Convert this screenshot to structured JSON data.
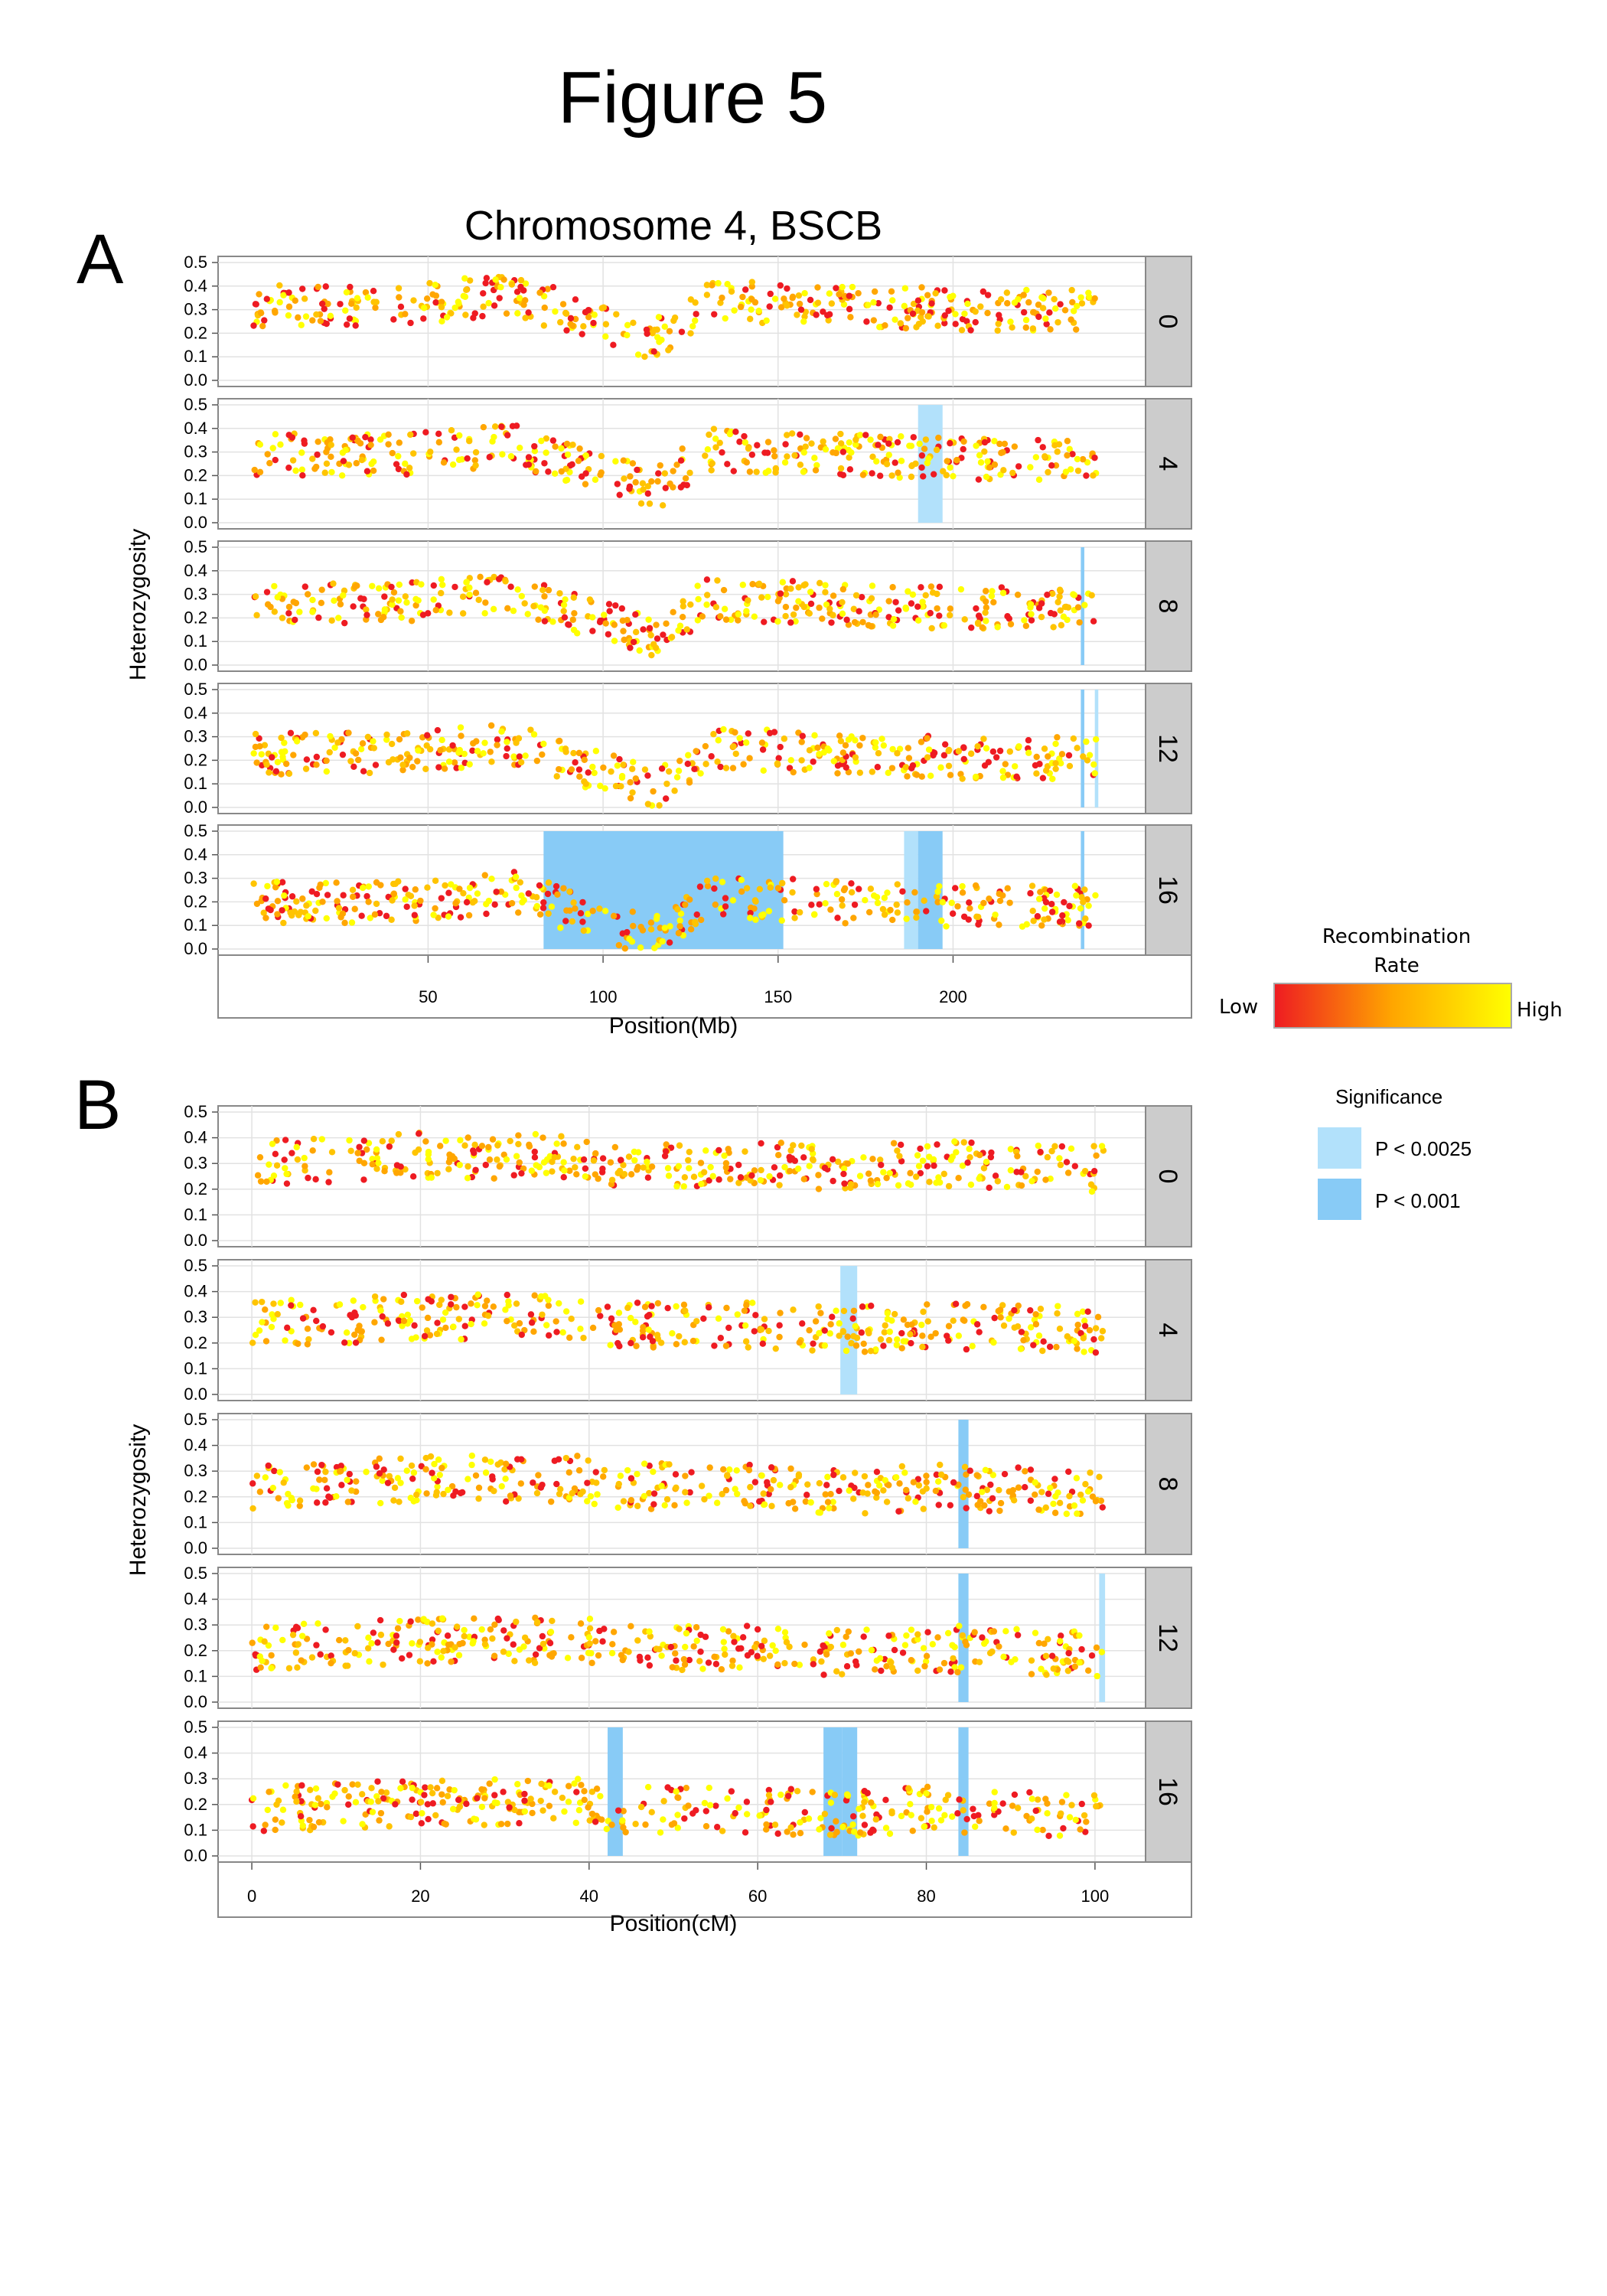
{
  "figure_title": "Figure 5",
  "panel_a_letter": "A",
  "panel_b_letter": "B",
  "colors": {
    "low": "#ee1b22",
    "mid": "#ffa600",
    "high": "#ffff00",
    "sig_light": "#b2e1fb",
    "sig_dark": "#88cbf6",
    "strip_bg": "#cccccc",
    "grid": "#e2e2e2"
  },
  "legend": {
    "recombination_title_line1": "Recombination",
    "recombination_title_line2": "Rate",
    "low_label": "Low",
    "high_label": "High",
    "significance_title": "Significance",
    "items": [
      {
        "label": "P < 0.0025",
        "color": "#b2e1fb"
      },
      {
        "label": "P < 0.001",
        "color": "#88cbf6"
      }
    ]
  },
  "chart_data": [
    {
      "type": "scatter",
      "title": "Chromosome 4, BSCB",
      "xlabel": "Position(Mb)",
      "ylabel": "Heterozygosity",
      "xlim": [
        -10,
        255
      ],
      "ylim": [
        0,
        0.5
      ],
      "xticks": [
        50,
        100,
        150,
        200
      ],
      "yticks": [
        0.0,
        0.1,
        0.2,
        0.3,
        0.4,
        0.5
      ],
      "facets": [
        {
          "label": "0",
          "regions": []
        },
        {
          "label": "4",
          "regions": [
            {
              "x0": 190,
              "x1": 197,
              "level": "P < 0.0025"
            }
          ]
        },
        {
          "label": "8",
          "regions": [
            {
              "x0": 236.5,
              "x1": 237.5,
              "level": "P < 0.001"
            }
          ]
        },
        {
          "label": "12",
          "regions": [
            {
              "x0": 236.5,
              "x1": 237.5,
              "level": "P < 0.001"
            },
            {
              "x0": 240.5,
              "x1": 241.5,
              "level": "P < 0.0025"
            }
          ]
        },
        {
          "label": "16",
          "regions": [
            {
              "x0": 83,
              "x1": 151.5,
              "level": "P < 0.001"
            },
            {
              "x0": 186,
              "x1": 190,
              "level": "P < 0.0025"
            },
            {
              "x0": 190,
              "x1": 197,
              "level": "P < 0.001"
            },
            {
              "x0": 236.5,
              "x1": 237.5,
              "level": "P < 0.001"
            }
          ]
        }
      ],
      "series_trend": {
        "description_points": [
          [
            0,
            0.32
          ],
          [
            40,
            0.32
          ],
          [
            75,
            0.36
          ],
          [
            100,
            0.24
          ],
          [
            115,
            0.17
          ],
          [
            130,
            0.34
          ],
          [
            150,
            0.33
          ],
          [
            200,
            0.3
          ],
          [
            240,
            0.3
          ]
        ],
        "x_range": [
          0,
          241
        ]
      }
    },
    {
      "type": "scatter",
      "xlabel": "Position(cM)",
      "ylabel": "Heterozygosity",
      "xlim": [
        -4,
        106
      ],
      "ylim": [
        0,
        0.5
      ],
      "xticks": [
        0,
        20,
        40,
        60,
        80,
        100
      ],
      "yticks": [
        0.0,
        0.1,
        0.2,
        0.3,
        0.4,
        0.5
      ],
      "facets": [
        {
          "label": "0",
          "regions": []
        },
        {
          "label": "4",
          "regions": [
            {
              "x0": 69.8,
              "x1": 71.8,
              "level": "P < 0.0025"
            }
          ]
        },
        {
          "label": "8",
          "regions": [
            {
              "x0": 83.8,
              "x1": 85.0,
              "level": "P < 0.001"
            }
          ]
        },
        {
          "label": "12",
          "regions": [
            {
              "x0": 83.8,
              "x1": 85.0,
              "level": "P < 0.001"
            },
            {
              "x0": 100.5,
              "x1": 101.2,
              "level": "P < 0.0025"
            }
          ]
        },
        {
          "label": "16",
          "regions": [
            {
              "x0": 42.2,
              "x1": 44.0,
              "level": "P < 0.001"
            },
            {
              "x0": 67.8,
              "x1": 70.0,
              "level": "P < 0.001"
            },
            {
              "x0": 70.0,
              "x1": 71.8,
              "level": "P < 0.001"
            },
            {
              "x0": 83.8,
              "x1": 85.0,
              "level": "P < 0.001"
            }
          ]
        }
      ],
      "series_trend": {
        "description_points": [
          [
            0,
            0.3
          ],
          [
            20,
            0.33
          ],
          [
            40,
            0.33
          ],
          [
            42,
            0.3
          ],
          [
            60,
            0.3
          ],
          [
            70,
            0.28
          ],
          [
            80,
            0.3
          ],
          [
            100,
            0.28
          ]
        ],
        "x_range": [
          0,
          101
        ]
      }
    }
  ]
}
